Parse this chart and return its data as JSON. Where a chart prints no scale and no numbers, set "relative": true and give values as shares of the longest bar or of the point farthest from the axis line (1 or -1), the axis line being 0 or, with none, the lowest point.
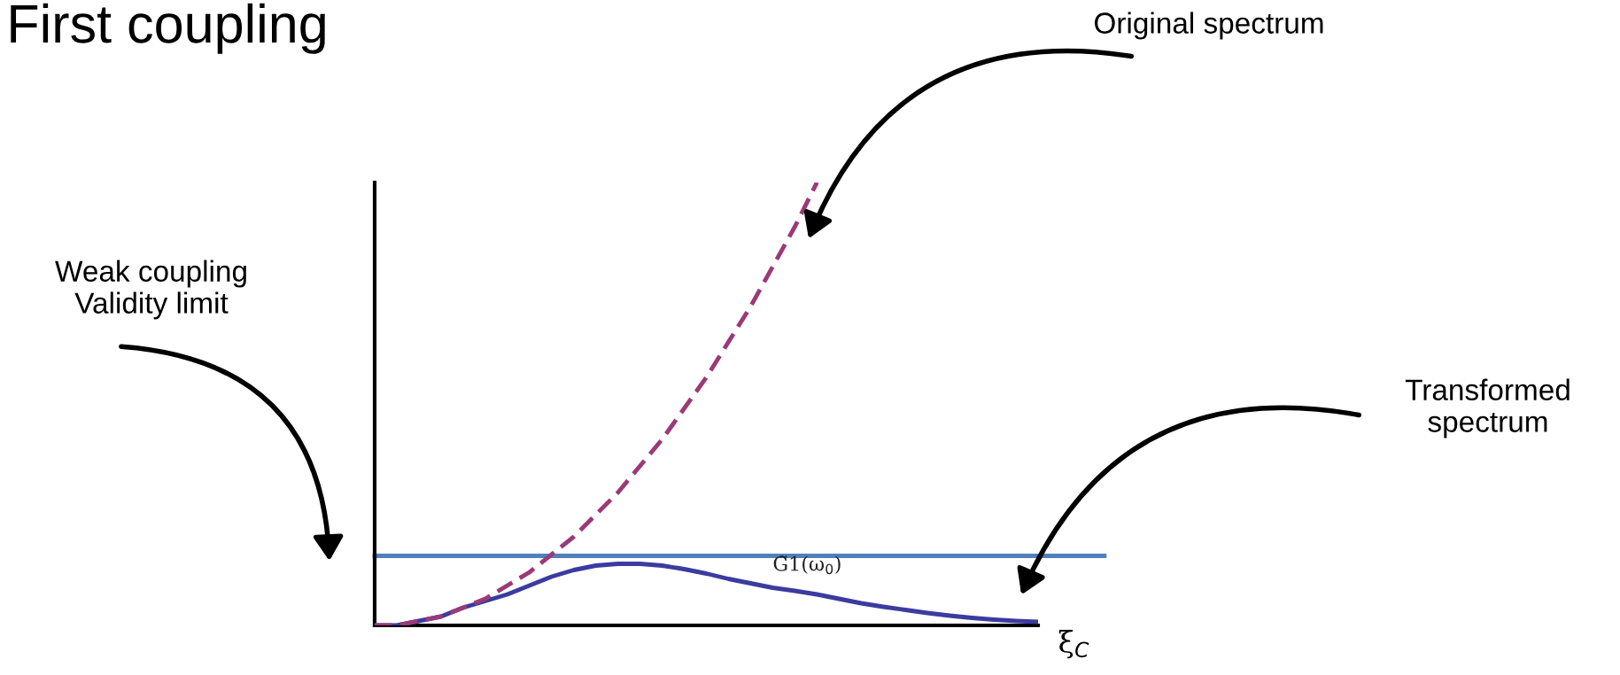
{
  "chart_data": {
    "type": "line",
    "title": "First coupling",
    "xlabel": "ξ$_{C}$",
    "relative": true,
    "categories": [
      null,
      null,
      null,
      null,
      null,
      null,
      null,
      null,
      null,
      null,
      null,
      null,
      null,
      null,
      null,
      null,
      null,
      null,
      null,
      null,
      null,
      null,
      null,
      null,
      null,
      null,
      null,
      null,
      null,
      null,
      null
    ],
    "series": [
      {
        "color": "#9b3a78",
        "line_style": "dashed",
        "values": [
          0,
          0.0,
          0.01,
          0.02,
          0.04,
          0.06,
          0.09,
          0.12,
          0.16,
          0.2,
          0.25,
          0.3,
          0.36,
          0.42,
          0.49,
          0.56,
          0.64,
          0.72,
          0.81,
          0.9,
          1.0,
          null,
          null,
          null,
          null,
          null,
          null,
          null,
          null,
          null,
          null
        ]
      },
      {
        "color": "#3b3ba0",
        "line_style": "solid",
        "values": [
          0,
          0.0,
          0.01,
          0.02,
          0.04,
          0.055,
          0.07,
          0.09,
          0.11,
          0.125,
          0.135,
          0.139,
          0.139,
          0.135,
          0.127,
          0.117,
          0.105,
          0.095,
          0.085,
          0.078,
          0.07,
          0.06,
          0.05,
          0.042,
          0.035,
          0.028,
          0.022,
          0.017,
          0.013,
          0.01,
          0.008
        ]
      }
    ],
    "ref_lines": [
      {
        "axis": "y",
        "value": 0.157,
        "label": "G̃1(ω$_{0}$)",
        "color": "#4f81bd"
      }
    ],
    "annotations": [
      "Original spectrum",
      "Weak coupling\nValidity limit",
      "Transformed\nspectrum"
    ],
    "legend": false,
    "marker": "none"
  }
}
